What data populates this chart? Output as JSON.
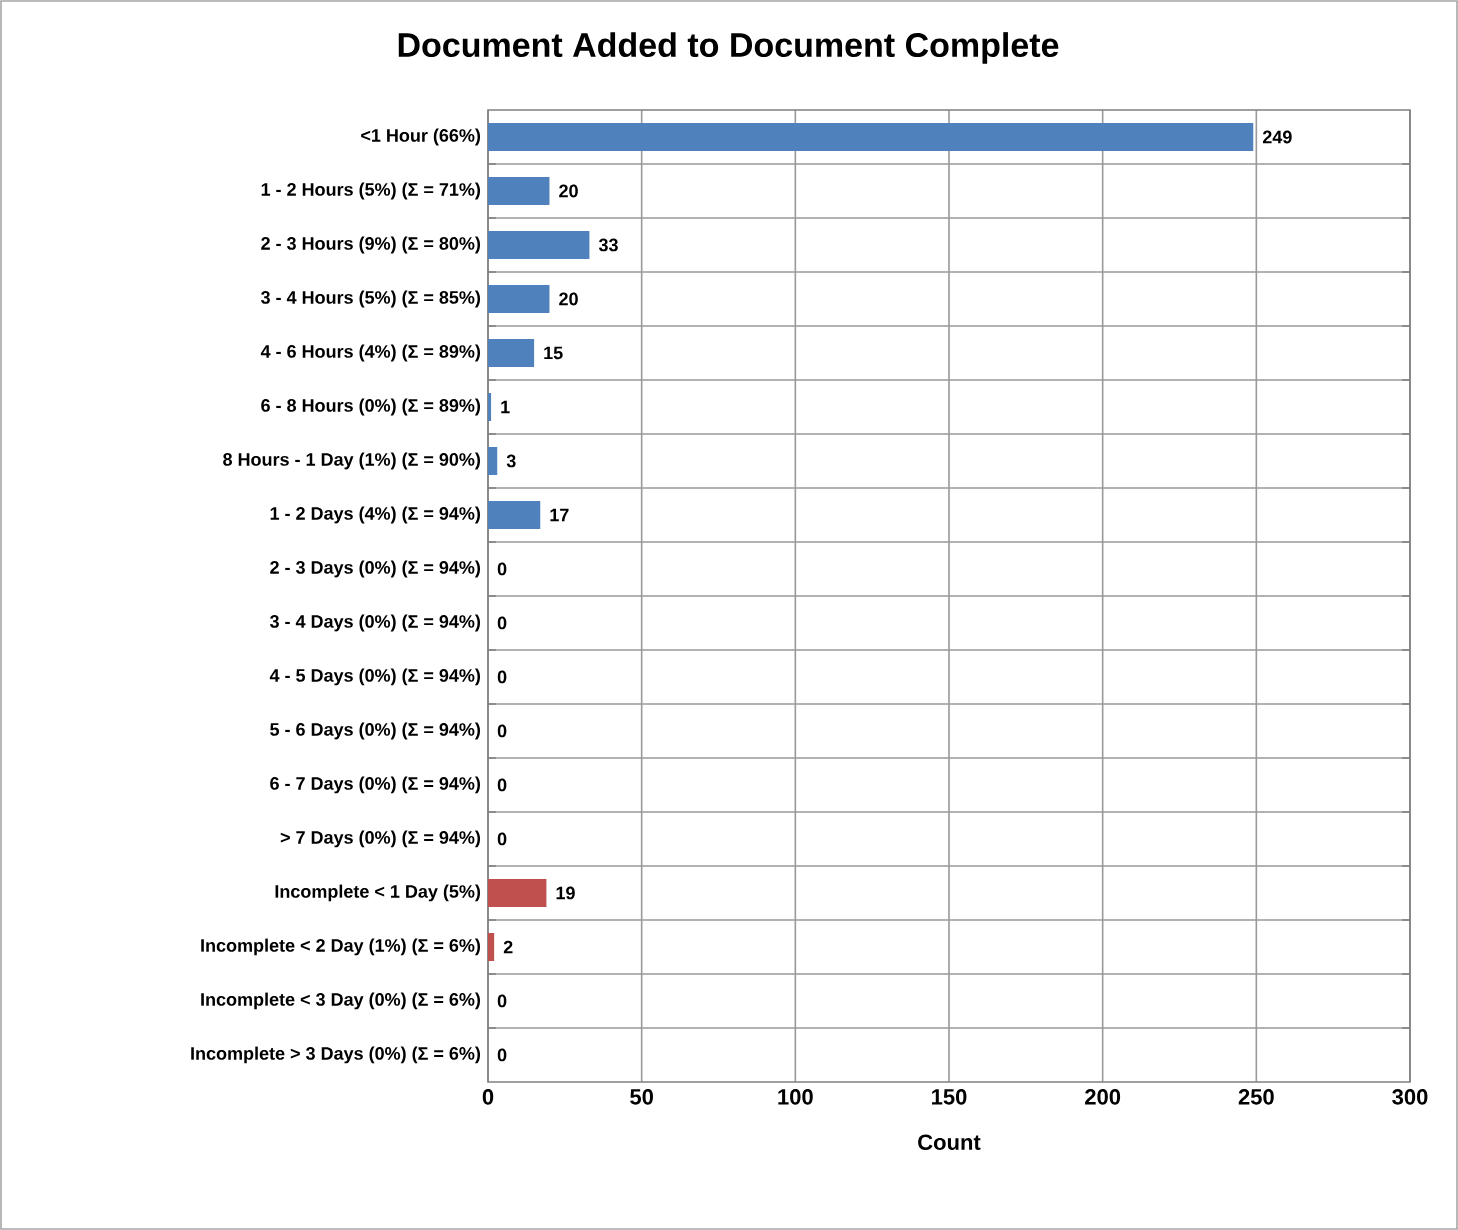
{
  "chart_data": {
    "type": "bar",
    "orientation": "horizontal",
    "title": "Document Added to Document Complete",
    "xlabel": "Count",
    "categories": [
      "<1 Hour (66%)",
      "1 - 2 Hours (5%) (Σ = 71%)",
      "2 - 3 Hours (9%) (Σ = 80%)",
      "3 - 4 Hours (5%) (Σ = 85%)",
      "4 - 6 Hours (4%) (Σ = 89%)",
      "6 - 8 Hours (0%) (Σ = 89%)",
      "8 Hours - 1 Day (1%) (Σ = 90%)",
      "1 - 2 Days (4%) (Σ = 94%)",
      "2 - 3 Days (0%) (Σ = 94%)",
      "3 - 4 Days (0%) (Σ = 94%)",
      "4 - 5 Days (0%) (Σ = 94%)",
      "5 - 6 Days (0%) (Σ = 94%)",
      "6 - 7 Days (0%) (Σ = 94%)",
      "> 7 Days (0%) (Σ = 94%)",
      "Incomplete  < 1 Day (5%)",
      "Incomplete  < 2 Day (1%) (Σ = 6%)",
      "Incomplete  < 3 Day (0%) (Σ = 6%)",
      "Incomplete > 3 Days (0%) (Σ = 6%)"
    ],
    "values": [
      249,
      20,
      33,
      20,
      15,
      1,
      3,
      17,
      0,
      0,
      0,
      0,
      0,
      0,
      19,
      2,
      0,
      0
    ],
    "colors": [
      "#4f81bd",
      "#4f81bd",
      "#4f81bd",
      "#4f81bd",
      "#4f81bd",
      "#4f81bd",
      "#4f81bd",
      "#4f81bd",
      "#4f81bd",
      "#4f81bd",
      "#4f81bd",
      "#4f81bd",
      "#4f81bd",
      "#4f81bd",
      "#c0504d",
      "#c0504d",
      "#c0504d",
      "#c0504d"
    ],
    "xlim": [
      0,
      300
    ],
    "xticks": [
      0,
      50,
      100,
      150,
      200,
      250,
      300
    ],
    "grid": true,
    "data_labels": true
  }
}
